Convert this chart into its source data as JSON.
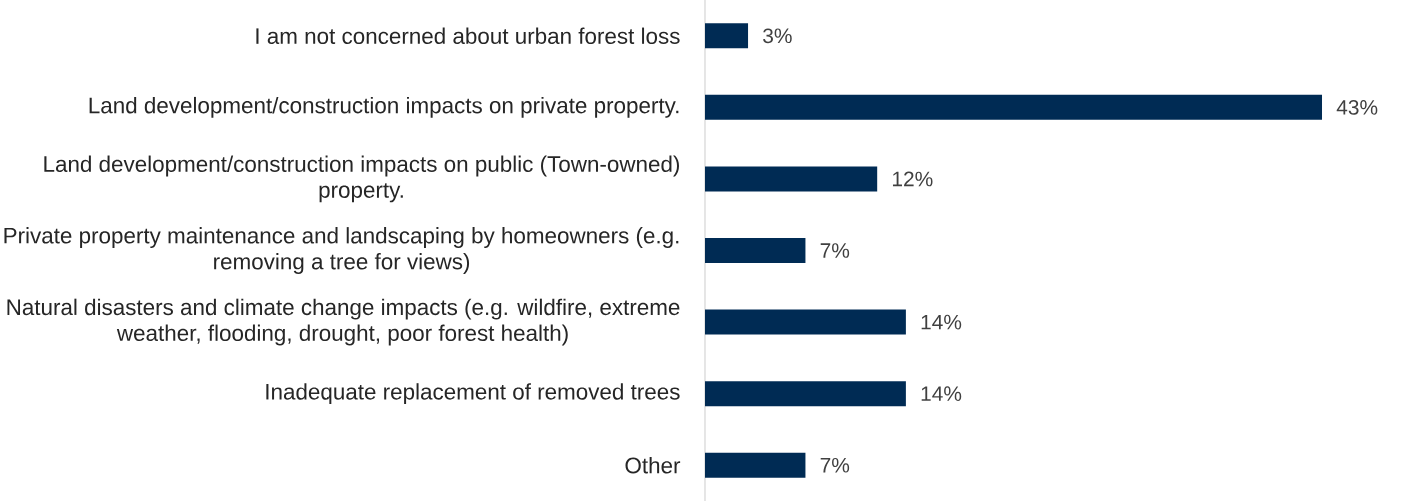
{
  "chart_data": {
    "type": "bar",
    "orientation": "horizontal",
    "categories": [
      "I am not concerned about urban forest loss",
      "Land development/construction impacts on private property.",
      "Land development/construction impacts on public (Town-owned) property.",
      "Private property maintenance and landscaping by homeowners (e.g. removing a tree for views)",
      "Natural disasters and climate change impacts (e.g. wildfire, extreme weather, flooding, drought, poor forest health)",
      "Inadequate replacement of removed trees",
      "Other"
    ],
    "values": [
      3,
      43,
      12,
      7,
      14,
      14,
      7
    ],
    "value_labels": [
      "3%",
      "43%",
      "12%",
      "7%",
      "14%",
      "14%",
      "7%"
    ],
    "color": "#002b54",
    "xlim": [
      0,
      43
    ],
    "tick_labels": "y"
  }
}
